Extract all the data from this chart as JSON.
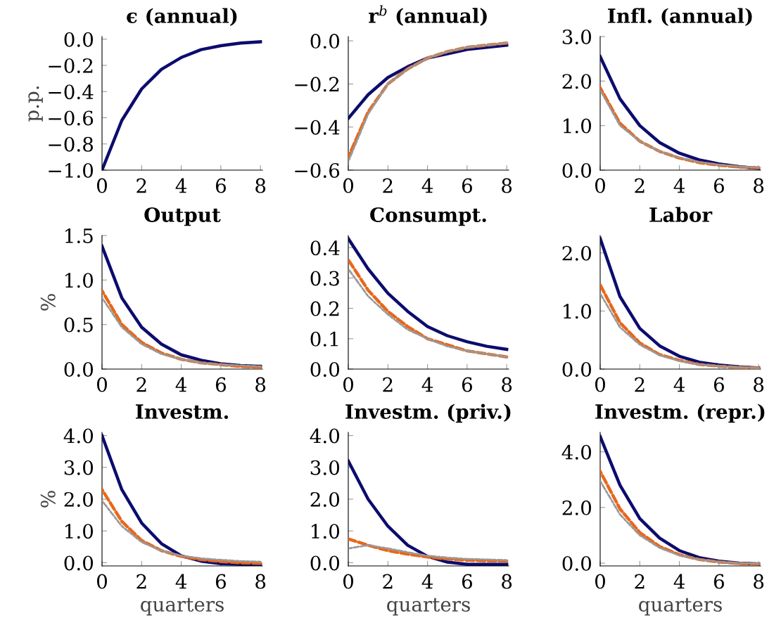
{
  "chart_data": [
    {
      "type": "line",
      "title": "ϵ (annual)",
      "ylabel": "p.p.",
      "x": [
        0,
        1,
        2,
        3,
        4,
        5,
        6,
        7,
        8
      ],
      "xlim": [
        0,
        8.1
      ],
      "xticks": [
        0,
        2,
        4,
        6,
        8
      ],
      "ylim": [
        -1.0,
        0.02
      ],
      "yticks": [
        {
          "value": -1.0,
          "label": "−1.0"
        },
        {
          "value": -0.8,
          "label": "−0.8"
        },
        {
          "value": -0.6,
          "label": "−0.6"
        },
        {
          "value": -0.4,
          "label": "−0.4"
        },
        {
          "value": -0.2,
          "label": "−0.2"
        },
        {
          "value": 0.0,
          "label": "0.0"
        }
      ],
      "grid": false,
      "series": [
        {
          "color": "#0c0c6e",
          "line_style": "solid",
          "values": [
            -1.0,
            -0.62,
            -0.38,
            -0.23,
            -0.14,
            -0.08,
            -0.05,
            -0.03,
            -0.02
          ]
        }
      ]
    },
    {
      "type": "line",
      "title": "r$^{b}$ (annual)",
      "x": [
        0,
        1,
        2,
        3,
        4,
        5,
        6,
        7,
        8
      ],
      "xlim": [
        0,
        8.1
      ],
      "xticks": [
        0,
        2,
        4,
        6,
        8
      ],
      "ylim": [
        -0.6,
        0.02
      ],
      "yticks": [
        {
          "value": -0.6,
          "label": "−0.6"
        },
        {
          "value": -0.4,
          "label": "−0.4"
        },
        {
          "value": -0.2,
          "label": "−0.2"
        },
        {
          "value": 0.0,
          "label": "0.0"
        }
      ],
      "grid": false,
      "series": [
        {
          "color": "#0c0c6e",
          "line_style": "solid",
          "values": [
            -0.36,
            -0.25,
            -0.17,
            -0.12,
            -0.08,
            -0.06,
            -0.04,
            -0.03,
            -0.02
          ]
        },
        {
          "color": "#e8671a",
          "line_style": "dashed",
          "values": [
            -0.54,
            -0.33,
            -0.2,
            -0.13,
            -0.08,
            -0.05,
            -0.03,
            -0.02,
            -0.01
          ]
        },
        {
          "color": "#999999",
          "line_style": "dotted",
          "values": [
            -0.56,
            -0.34,
            -0.2,
            -0.13,
            -0.08,
            -0.05,
            -0.03,
            -0.02,
            -0.01
          ]
        }
      ]
    },
    {
      "type": "line",
      "title": "Infl. (annual)",
      "x": [
        0,
        1,
        2,
        3,
        4,
        5,
        6,
        7,
        8
      ],
      "xlim": [
        0,
        8.1
      ],
      "xticks": [
        0,
        2,
        4,
        6,
        8
      ],
      "ylim": [
        0,
        3.0
      ],
      "yticks": [
        {
          "value": 0,
          "label": "0.0"
        },
        {
          "value": 1,
          "label": "1.0"
        },
        {
          "value": 2,
          "label": "2.0"
        },
        {
          "value": 3,
          "label": "3.0"
        }
      ],
      "grid": false,
      "series": [
        {
          "color": "#0c0c6e",
          "line_style": "solid",
          "values": [
            2.55,
            1.6,
            1.0,
            0.62,
            0.38,
            0.23,
            0.14,
            0.08,
            0.04
          ]
        },
        {
          "color": "#e8671a",
          "line_style": "dashed",
          "values": [
            1.85,
            1.05,
            0.65,
            0.42,
            0.27,
            0.17,
            0.11,
            0.07,
            0.05
          ]
        },
        {
          "color": "#999999",
          "line_style": "dotted",
          "values": [
            1.8,
            1.0,
            0.65,
            0.42,
            0.28,
            0.18,
            0.12,
            0.08,
            0.06
          ]
        }
      ]
    },
    {
      "type": "line",
      "title": "Output",
      "ylabel": "%",
      "x": [
        0,
        1,
        2,
        3,
        4,
        5,
        6,
        7,
        8
      ],
      "xlim": [
        0,
        8.1
      ],
      "xticks": [
        0,
        2,
        4,
        6,
        8
      ],
      "ylim": [
        0,
        1.5
      ],
      "yticks": [
        {
          "value": 0,
          "label": "0.0"
        },
        {
          "value": 0.5,
          "label": "0.5"
        },
        {
          "value": 1.0,
          "label": "1.0"
        },
        {
          "value": 1.5,
          "label": "1.5"
        }
      ],
      "grid": false,
      "series": [
        {
          "color": "#0c0c6e",
          "line_style": "solid",
          "values": [
            1.38,
            0.8,
            0.47,
            0.28,
            0.16,
            0.1,
            0.06,
            0.04,
            0.03
          ]
        },
        {
          "color": "#e8671a",
          "line_style": "dashed",
          "values": [
            0.88,
            0.5,
            0.3,
            0.18,
            0.11,
            0.07,
            0.05,
            0.03,
            0.02
          ]
        },
        {
          "color": "#999999",
          "line_style": "dotted",
          "values": [
            0.8,
            0.47,
            0.28,
            0.17,
            0.11,
            0.07,
            0.05,
            0.04,
            0.03
          ]
        }
      ]
    },
    {
      "type": "line",
      "title": "Consumpt.",
      "x": [
        0,
        1,
        2,
        3,
        4,
        5,
        6,
        7,
        8
      ],
      "xlim": [
        0,
        8.1
      ],
      "xticks": [
        0,
        2,
        4,
        6,
        8
      ],
      "ylim": [
        0,
        0.44
      ],
      "yticks": [
        {
          "value": 0,
          "label": "0.0"
        },
        {
          "value": 0.1,
          "label": "0.1"
        },
        {
          "value": 0.2,
          "label": "0.2"
        },
        {
          "value": 0.3,
          "label": "0.3"
        },
        {
          "value": 0.4,
          "label": "0.4"
        }
      ],
      "grid": false,
      "series": [
        {
          "color": "#0c0c6e",
          "line_style": "solid",
          "values": [
            0.43,
            0.33,
            0.25,
            0.19,
            0.14,
            0.11,
            0.09,
            0.075,
            0.065
          ]
        },
        {
          "color": "#e8671a",
          "line_style": "dashed",
          "values": [
            0.36,
            0.26,
            0.19,
            0.14,
            0.1,
            0.08,
            0.06,
            0.05,
            0.04
          ]
        },
        {
          "color": "#999999",
          "line_style": "dotted",
          "values": [
            0.33,
            0.24,
            0.18,
            0.13,
            0.1,
            0.075,
            0.06,
            0.05,
            0.04
          ]
        }
      ]
    },
    {
      "type": "line",
      "title": "Labor",
      "x": [
        0,
        1,
        2,
        3,
        4,
        5,
        6,
        7,
        8
      ],
      "xlim": [
        0,
        8.1
      ],
      "xticks": [
        0,
        2,
        4,
        6,
        8
      ],
      "ylim": [
        0,
        2.3
      ],
      "yticks": [
        {
          "value": 0,
          "label": "0.0"
        },
        {
          "value": 1,
          "label": "1.0"
        },
        {
          "value": 2,
          "label": "2.0"
        }
      ],
      "grid": false,
      "series": [
        {
          "color": "#0c0c6e",
          "line_style": "solid",
          "values": [
            2.25,
            1.25,
            0.7,
            0.4,
            0.22,
            0.12,
            0.07,
            0.04,
            0.02
          ]
        },
        {
          "color": "#e8671a",
          "line_style": "dashed",
          "values": [
            1.45,
            0.8,
            0.45,
            0.25,
            0.15,
            0.08,
            0.05,
            0.03,
            0.02
          ]
        },
        {
          "color": "#999999",
          "line_style": "dotted",
          "values": [
            1.3,
            0.72,
            0.42,
            0.24,
            0.14,
            0.08,
            0.05,
            0.03,
            0.02
          ]
        }
      ]
    },
    {
      "type": "line",
      "title": "Investm.",
      "ylabel": "%",
      "xlabel": "quarters",
      "x": [
        0,
        1,
        2,
        3,
        4,
        5,
        6,
        7,
        8
      ],
      "xlim": [
        0,
        8.1
      ],
      "xticks": [
        0,
        2,
        4,
        6,
        8
      ],
      "ylim": [
        -0.1,
        4.1
      ],
      "yticks": [
        {
          "value": 0,
          "label": "0.0"
        },
        {
          "value": 1,
          "label": "1.0"
        },
        {
          "value": 2,
          "label": "2.0"
        },
        {
          "value": 3,
          "label": "3.0"
        },
        {
          "value": 4,
          "label": "4.0"
        }
      ],
      "grid": false,
      "series": [
        {
          "color": "#0c0c6e",
          "line_style": "solid",
          "values": [
            4.0,
            2.3,
            1.25,
            0.6,
            0.22,
            0.05,
            -0.03,
            -0.05,
            -0.05
          ]
        },
        {
          "color": "#e8671a",
          "line_style": "dashed",
          "values": [
            2.3,
            1.3,
            0.7,
            0.38,
            0.2,
            0.1,
            0.04,
            0.0,
            -0.02
          ]
        },
        {
          "color": "#999999",
          "line_style": "dotted",
          "values": [
            1.95,
            1.15,
            0.65,
            0.38,
            0.22,
            0.14,
            0.09,
            0.05,
            0.03
          ]
        }
      ]
    },
    {
      "type": "line",
      "title": "Investm. (priv.)",
      "xlabel": "quarters",
      "x": [
        0,
        1,
        2,
        3,
        4,
        5,
        6,
        7,
        8
      ],
      "xlim": [
        0,
        8.1
      ],
      "xticks": [
        0,
        2,
        4,
        6,
        8
      ],
      "ylim": [
        -0.1,
        4.1
      ],
      "yticks": [
        {
          "value": 0,
          "label": "0.0"
        },
        {
          "value": 1,
          "label": "1.0"
        },
        {
          "value": 2,
          "label": "2.0"
        },
        {
          "value": 3,
          "label": "3.0"
        },
        {
          "value": 4,
          "label": "4.0"
        }
      ],
      "grid": false,
      "series": [
        {
          "color": "#0c0c6e",
          "line_style": "solid",
          "values": [
            3.2,
            2.0,
            1.15,
            0.55,
            0.2,
            0.02,
            -0.05,
            -0.05,
            -0.05
          ]
        },
        {
          "color": "#e8671a",
          "line_style": "dashed",
          "values": [
            0.75,
            0.55,
            0.38,
            0.27,
            0.18,
            0.12,
            0.08,
            0.06,
            0.05
          ]
        },
        {
          "color": "#999999",
          "line_style": "dotted",
          "values": [
            0.45,
            0.55,
            0.45,
            0.33,
            0.22,
            0.16,
            0.12,
            0.1,
            0.08
          ]
        }
      ]
    },
    {
      "type": "line",
      "title": "Investm. (repr.)",
      "xlabel": "quarters",
      "x": [
        0,
        1,
        2,
        3,
        4,
        5,
        6,
        7,
        8
      ],
      "xlim": [
        0,
        8.1
      ],
      "xticks": [
        0,
        2,
        4,
        6,
        8
      ],
      "ylim": [
        -0.1,
        4.7
      ],
      "yticks": [
        {
          "value": 0,
          "label": "0.0"
        },
        {
          "value": 2,
          "label": "2.0"
        },
        {
          "value": 4,
          "label": "4.0"
        }
      ],
      "grid": false,
      "series": [
        {
          "color": "#0c0c6e",
          "line_style": "solid",
          "values": [
            4.55,
            2.8,
            1.6,
            0.9,
            0.45,
            0.2,
            0.07,
            0.0,
            -0.03
          ]
        },
        {
          "color": "#e8671a",
          "line_style": "dashed",
          "values": [
            3.3,
            1.95,
            1.1,
            0.6,
            0.3,
            0.13,
            0.04,
            -0.01,
            -0.03
          ]
        },
        {
          "color": "#999999",
          "line_style": "dotted",
          "values": [
            2.95,
            1.75,
            1.0,
            0.55,
            0.28,
            0.13,
            0.05,
            0.0,
            -0.02
          ]
        }
      ]
    }
  ]
}
